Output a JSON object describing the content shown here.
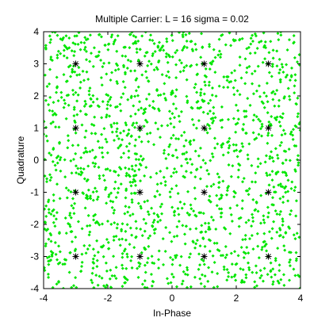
{
  "chart_data": {
    "type": "scatter",
    "title": "Multiple Carrier: L = 16 sigma = 0.02",
    "xlabel": "In-Phase",
    "ylabel": "Quadrature",
    "xlim": [
      -4,
      4
    ],
    "ylim": [
      -4,
      4
    ],
    "xticks": [
      -4,
      -2,
      0,
      2,
      4
    ],
    "yticks": [
      -4,
      -3,
      -2,
      -1,
      0,
      1,
      2,
      3,
      4
    ],
    "grid": false,
    "legend": "none",
    "series": [
      {
        "marker": "dot",
        "color": "#00e600",
        "distribution": "uniform",
        "count": 1600,
        "x_range": [
          -4,
          4
        ],
        "y_range": [
          -4,
          4
        ]
      },
      {
        "marker": "asterisk",
        "color": "#000000",
        "points": [
          [
            -3,
            3
          ],
          [
            -1,
            3
          ],
          [
            1,
            3
          ],
          [
            3,
            3
          ],
          [
            -3,
            1
          ],
          [
            -1,
            1
          ],
          [
            1,
            1
          ],
          [
            3,
            1
          ],
          [
            -3,
            -1
          ],
          [
            -1,
            -1
          ],
          [
            1,
            -1
          ],
          [
            3,
            -1
          ],
          [
            -3,
            -3
          ],
          [
            -1,
            -3
          ],
          [
            1,
            -3
          ],
          [
            3,
            -3
          ]
        ]
      }
    ]
  }
}
